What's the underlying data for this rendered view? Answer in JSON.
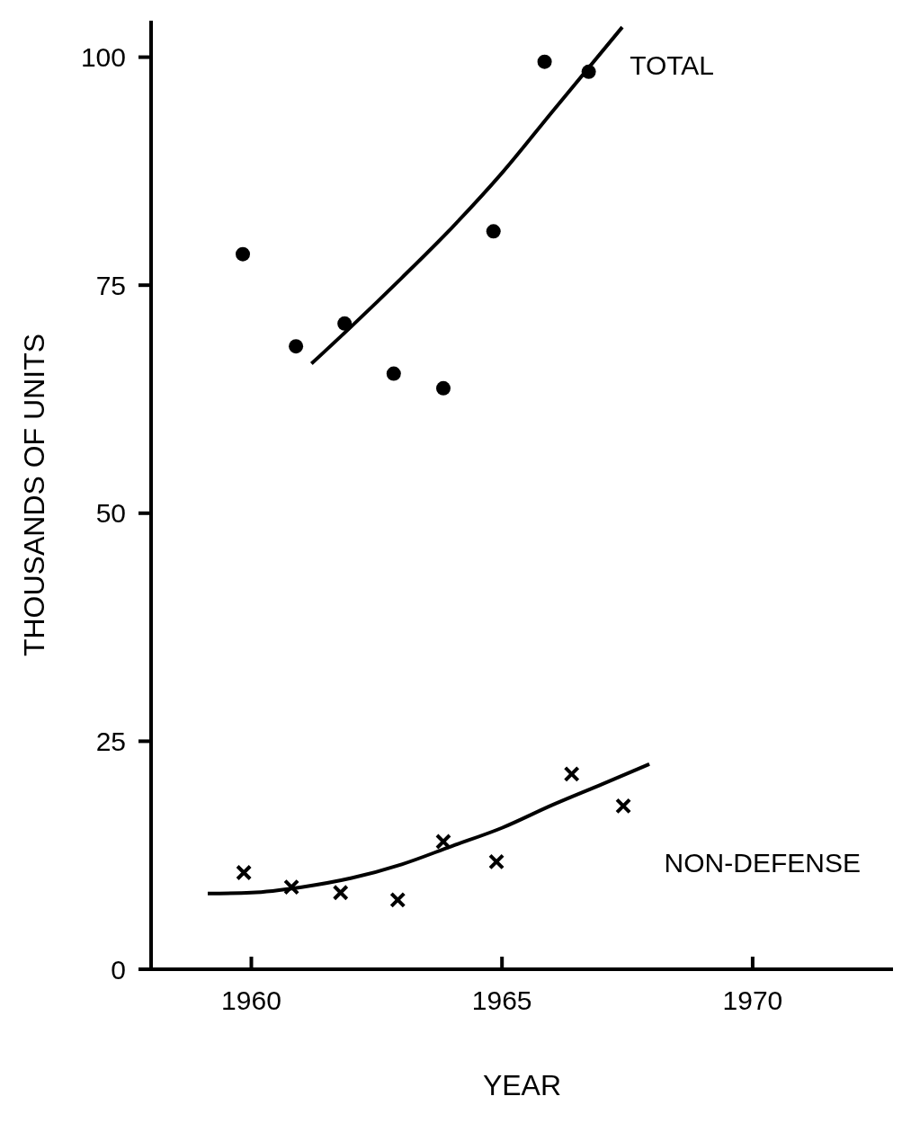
{
  "chart_data": {
    "type": "scatter",
    "xlabel": "YEAR",
    "ylabel": "THOUSANDS OF UNITS",
    "xlim": [
      1958,
      1972.8
    ],
    "xticks": [
      1960,
      1965,
      1970
    ],
    "ylim": [
      0,
      104
    ],
    "yticks": [
      0,
      25,
      50,
      75,
      100
    ],
    "grid": false,
    "series": [
      {
        "name": "TOTAL",
        "marker": "circle",
        "color": "#000000",
        "x": [
          1959.83,
          1960.89,
          1961.86,
          1962.84,
          1963.83,
          1964.83,
          1965.85,
          1966.73
        ],
        "values": [
          78.4,
          68.3,
          70.8,
          65.3,
          63.7,
          80.9,
          99.5,
          98.4
        ]
      },
      {
        "name": "NON-DEFENSE",
        "marker": "cross",
        "color": "#000000",
        "x": [
          1959.85,
          1960.8,
          1961.78,
          1962.92,
          1963.83,
          1964.89,
          1966.39,
          1967.42
        ],
        "values": [
          10.6,
          9.0,
          8.4,
          7.6,
          14.0,
          11.8,
          21.4,
          17.9
        ]
      },
      {
        "type": "line",
        "marker": "none",
        "line_style": "solid",
        "color": "#000000",
        "x": [
          1961.2,
          1962,
          1963,
          1964,
          1965,
          1966,
          1967.4
        ],
        "values": [
          66.4,
          70.5,
          75.8,
          81.3,
          87.3,
          94,
          103.3
        ]
      },
      {
        "type": "line",
        "marker": "none",
        "line_style": "solid",
        "color": "#000000",
        "x": [
          1959.13,
          1960,
          1961,
          1962,
          1963,
          1964,
          1965,
          1966,
          1967,
          1967.94
        ],
        "values": [
          8.3,
          8.4,
          9.0,
          10,
          11.5,
          13.5,
          15.5,
          18,
          20.3,
          22.5
        ]
      }
    ]
  }
}
